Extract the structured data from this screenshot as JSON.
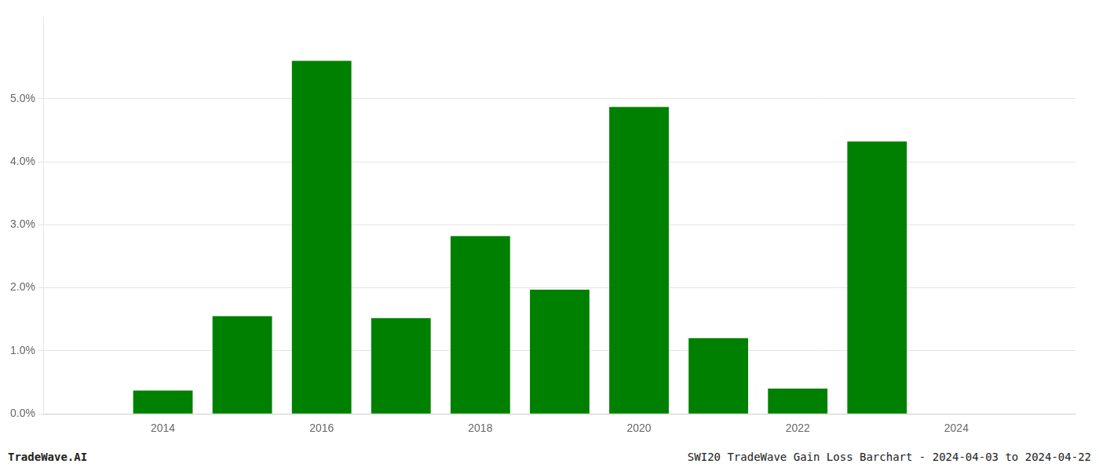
{
  "chart_data": {
    "type": "bar",
    "x": [
      2014,
      2015,
      2016,
      2017,
      2018,
      2019,
      2020,
      2021,
      2022,
      2023,
      2024
    ],
    "values": [
      0.0037,
      0.0155,
      0.056,
      0.0152,
      0.0282,
      0.0197,
      0.0487,
      0.012,
      0.004,
      0.0432,
      0.0
    ],
    "color": "#008000",
    "xlim": [
      2012.5,
      2025.5
    ],
    "xticks": [
      2014,
      2016,
      2018,
      2020,
      2022,
      2024
    ],
    "ylim": [
      0,
      0.063
    ],
    "yticks": [
      {
        "value": 0,
        "label": "0.0%"
      },
      {
        "value": 0.01,
        "label": "1.0%"
      },
      {
        "value": 0.02,
        "label": "2.0%"
      },
      {
        "value": 0.03,
        "label": "3.0%"
      },
      {
        "value": 0.04,
        "label": "4.0%"
      },
      {
        "value": 0.05,
        "label": "5.0%"
      }
    ],
    "grid": true,
    "annotations": [
      "TradeWave.AI",
      "SWI20 TradeWave Gain Loss Barchart - 2024-04-03 to 2024-04-22"
    ]
  }
}
